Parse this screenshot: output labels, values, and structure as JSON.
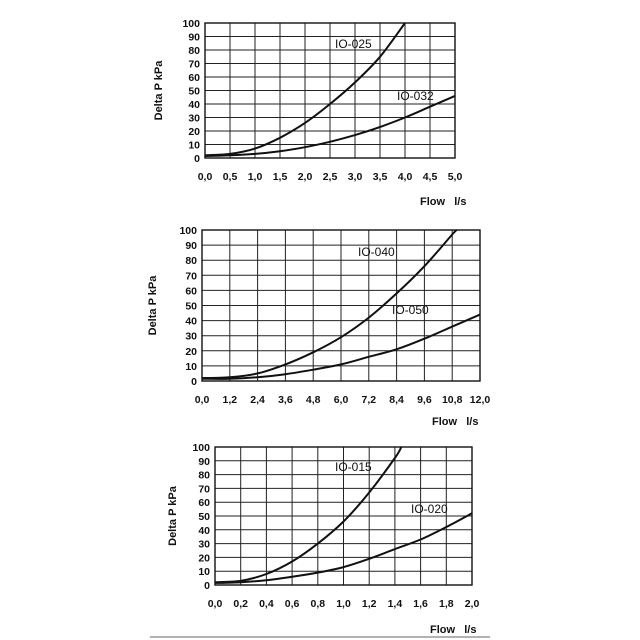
{
  "chart_data": [
    {
      "type": "line",
      "xlabel": "Flow   l/s",
      "ylabel": "Delta P  kPa",
      "xlim": [
        0,
        5
      ],
      "ylim": [
        0,
        100
      ],
      "x_ticks": [
        "0,0",
        "0,5",
        "1,0",
        "1,5",
        "2,0",
        "2,5",
        "3,0",
        "3,5",
        "4,0",
        "4,5",
        "5,0"
      ],
      "y_ticks": [
        "0",
        "10",
        "20",
        "30",
        "40",
        "50",
        "60",
        "70",
        "80",
        "90",
        "100"
      ],
      "grid": true,
      "series": [
        {
          "name": "IO-025",
          "x": [
            0,
            0.5,
            1.0,
            1.5,
            2.0,
            2.5,
            3.0,
            3.5,
            4.0
          ],
          "y": [
            2,
            3,
            7,
            15,
            26,
            40,
            56,
            75,
            100
          ]
        },
        {
          "name": "IO-032",
          "x": [
            0,
            0.5,
            1.0,
            1.5,
            2.0,
            2.5,
            3.0,
            3.5,
            4.0,
            4.5,
            5.0
          ],
          "y": [
            1.5,
            2,
            3,
            5,
            8,
            12,
            17,
            23,
            30,
            38,
            46
          ]
        }
      ]
    },
    {
      "type": "line",
      "xlabel": "Flow   l/s",
      "ylabel": "Delta P  kPa",
      "xlim": [
        0,
        12
      ],
      "ylim": [
        0,
        100
      ],
      "x_ticks": [
        "0,0",
        "1,2",
        "2,4",
        "3,6",
        "4,8",
        "6,0",
        "7,2",
        "8,4",
        "9,6",
        "10,8",
        "12,0"
      ],
      "y_ticks": [
        "0",
        "10",
        "20",
        "30",
        "40",
        "50",
        "60",
        "70",
        "80",
        "90",
        "100"
      ],
      "grid": true,
      "series": [
        {
          "name": "IO-040",
          "x": [
            0,
            1.2,
            2.4,
            3.6,
            4.8,
            6.0,
            7.2,
            8.4,
            9.6,
            10.8,
            11.0
          ],
          "y": [
            2,
            2.5,
            5,
            11,
            19,
            29,
            42,
            58,
            76,
            97,
            100
          ]
        },
        {
          "name": "IO-050",
          "x": [
            0,
            1.2,
            2.4,
            3.6,
            4.8,
            6.0,
            7.2,
            8.4,
            9.6,
            10.8,
            12.0
          ],
          "y": [
            1.5,
            1.5,
            2.5,
            4.5,
            7.5,
            11,
            16,
            21,
            28,
            36,
            44
          ]
        }
      ]
    },
    {
      "type": "line",
      "xlabel": "Flow   l/s",
      "ylabel": "Delta P  kPa",
      "xlim": [
        0,
        2
      ],
      "ylim": [
        0,
        100
      ],
      "x_ticks": [
        "0,0",
        "0,2",
        "0,4",
        "0,6",
        "0,8",
        "1,0",
        "1,2",
        "1,4",
        "1,6",
        "1,8",
        "2,0"
      ],
      "y_ticks": [
        "0",
        "10",
        "20",
        "30",
        "40",
        "50",
        "60",
        "70",
        "80",
        "90",
        "100"
      ],
      "grid": true,
      "series": [
        {
          "name": "IO-015",
          "x": [
            0,
            0.2,
            0.4,
            0.6,
            0.8,
            1.0,
            1.2,
            1.4,
            1.45
          ],
          "y": [
            2,
            3,
            8,
            17,
            30,
            46,
            67,
            92,
            100
          ]
        },
        {
          "name": "IO-020",
          "x": [
            0,
            0.2,
            0.4,
            0.6,
            0.8,
            1.0,
            1.2,
            1.4,
            1.6,
            1.8,
            2.0
          ],
          "y": [
            1.5,
            2,
            3.5,
            6,
            9,
            13,
            19,
            26,
            33,
            42,
            52
          ]
        }
      ]
    }
  ]
}
